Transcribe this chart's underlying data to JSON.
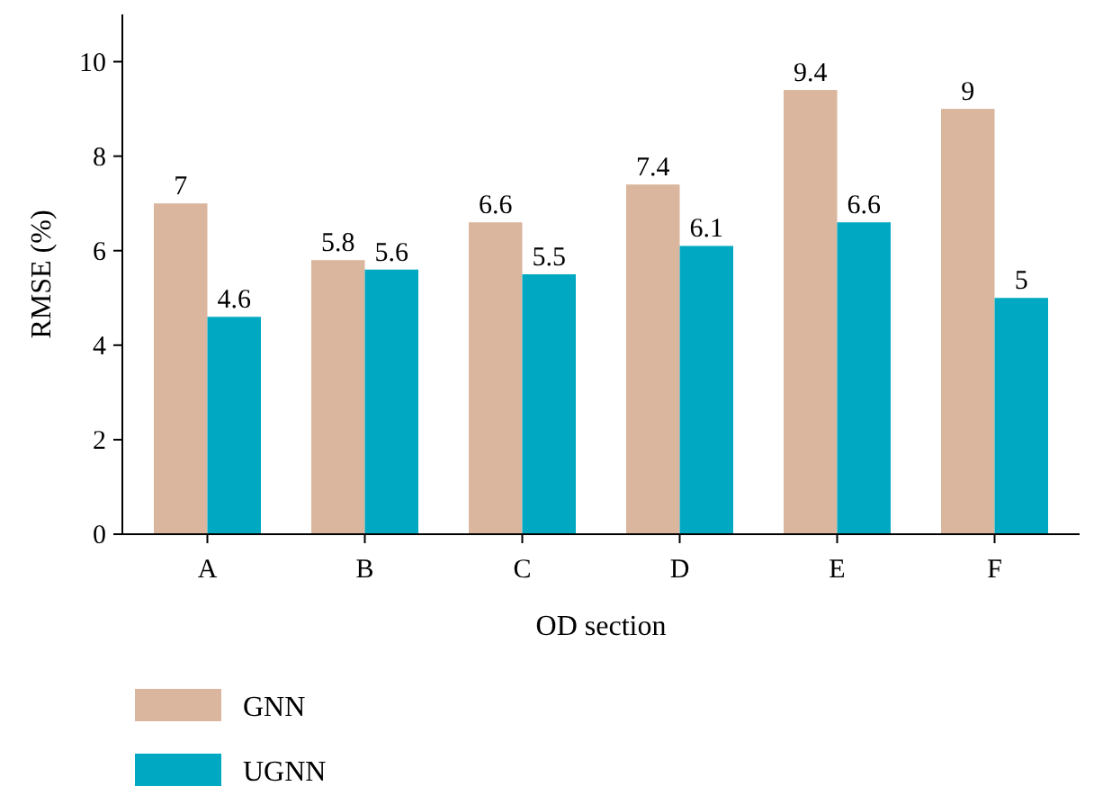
{
  "chart_data": {
    "type": "bar",
    "xlabel": "OD section",
    "ylabel": "RMSE (%)",
    "categories": [
      "A",
      "B",
      "C",
      "D",
      "E",
      "F"
    ],
    "series": [
      {
        "name": "GNN",
        "color": "#d9b69d",
        "values": [
          7,
          5.8,
          6.6,
          7.4,
          9.4,
          9
        ]
      },
      {
        "name": "UGNN",
        "color": "#00a9c1",
        "values": [
          4.6,
          5.6,
          5.5,
          6.1,
          6.6,
          5
        ]
      }
    ],
    "ylim": [
      0,
      11
    ],
    "yticks": [
      0,
      2,
      4,
      6,
      8,
      10
    ],
    "data_labels": true,
    "legend": "bottom",
    "grid": false
  }
}
